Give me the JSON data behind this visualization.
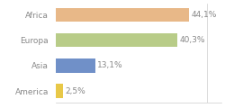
{
  "categories": [
    "America",
    "Asia",
    "Europa",
    "Africa"
  ],
  "values": [
    2.5,
    13.1,
    40.3,
    44.1
  ],
  "labels": [
    "2,5%",
    "13,1%",
    "40,3%",
    "44,1%"
  ],
  "bar_colors": [
    "#e8c848",
    "#7090c8",
    "#b8cc88",
    "#e8b888"
  ],
  "background_color": "#ffffff",
  "xlim": [
    0,
    55
  ],
  "bar_height": 0.55,
  "label_fontsize": 6.5,
  "tick_fontsize": 6.5,
  "label_color": "#888888",
  "tick_color": "#888888",
  "spine_color": "#cccccc"
}
